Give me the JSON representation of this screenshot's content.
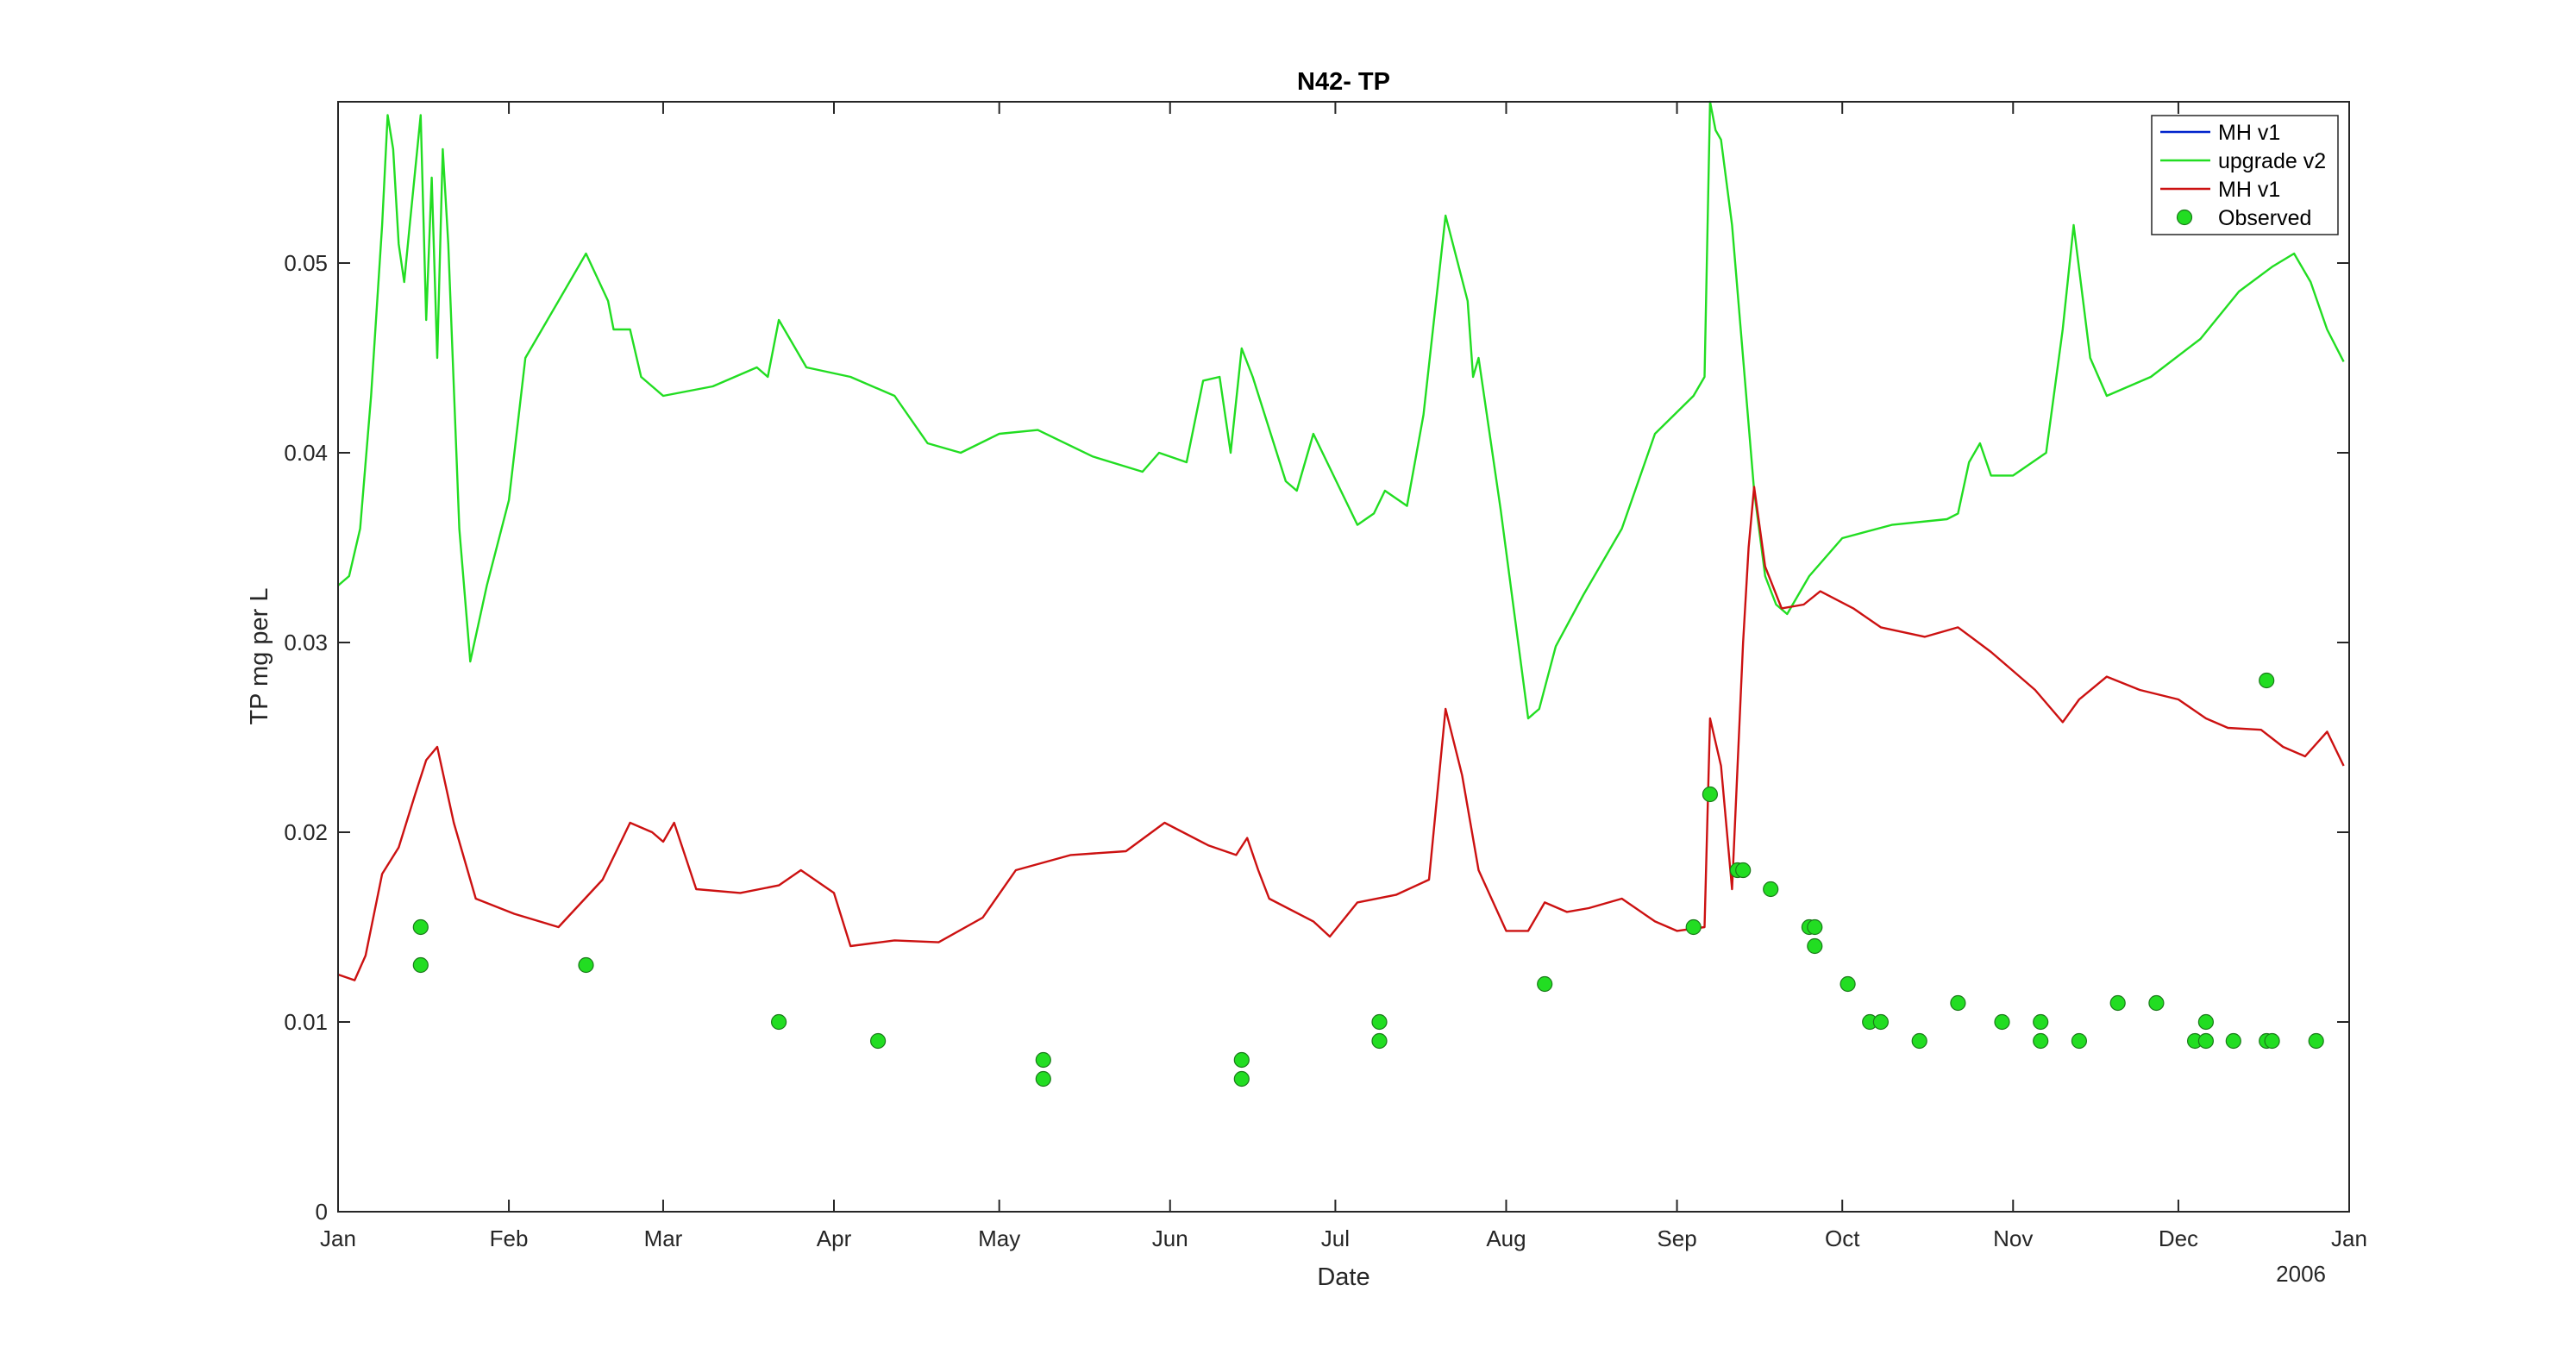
{
  "chart_data": {
    "type": "line",
    "title": "N42- TP",
    "xlabel": "Date",
    "ylabel": "TP mg per L",
    "year_label": "2006",
    "x_range": [
      "2006-01-01",
      "2007-01-01"
    ],
    "xticks": [
      "Jan",
      "Feb",
      "Mar",
      "Apr",
      "May",
      "Jun",
      "Jul",
      "Aug",
      "Sep",
      "Oct",
      "Nov",
      "Dec",
      "Jan"
    ],
    "xtick_dates": [
      "2006-01-01",
      "2006-02-01",
      "2006-03-01",
      "2006-04-01",
      "2006-05-01",
      "2006-06-01",
      "2006-07-01",
      "2006-08-01",
      "2006-09-01",
      "2006-10-01",
      "2006-11-01",
      "2006-12-01",
      "2007-01-01"
    ],
    "ylim": [
      0,
      0.0585
    ],
    "yticks": [
      0,
      0.01,
      0.02,
      0.03,
      0.04,
      0.05
    ],
    "ytick_labels": [
      "0",
      "0.01",
      "0.02",
      "0.03",
      "0.04",
      "0.05"
    ],
    "legend_position": "top-right",
    "grid": false,
    "series": [
      {
        "name": "MH v1",
        "color": "#0022cc",
        "kind": "line",
        "points": []
      },
      {
        "name": "upgrade v2",
        "color": "#22dd22",
        "kind": "line",
        "points": [
          [
            "2006-01-01",
            0.033
          ],
          [
            "2006-01-03",
            0.0335
          ],
          [
            "2006-01-05",
            0.036
          ],
          [
            "2006-01-07",
            0.043
          ],
          [
            "2006-01-09",
            0.052
          ],
          [
            "2006-01-10",
            0.0578
          ],
          [
            "2006-01-11",
            0.056
          ],
          [
            "2006-01-12",
            0.051
          ],
          [
            "2006-01-13",
            0.049
          ],
          [
            "2006-01-14",
            0.052
          ],
          [
            "2006-01-16",
            0.0578
          ],
          [
            "2006-01-17",
            0.047
          ],
          [
            "2006-01-18",
            0.0545
          ],
          [
            "2006-01-19",
            0.045
          ],
          [
            "2006-01-20",
            0.056
          ],
          [
            "2006-01-21",
            0.051
          ],
          [
            "2006-01-23",
            0.036
          ],
          [
            "2006-01-25",
            0.029
          ],
          [
            "2006-01-28",
            0.033
          ],
          [
            "2006-02-01",
            0.0375
          ],
          [
            "2006-02-04",
            0.045
          ],
          [
            "2006-02-10",
            0.048
          ],
          [
            "2006-02-15",
            0.0505
          ],
          [
            "2006-02-19",
            0.048
          ],
          [
            "2006-02-20",
            0.0465
          ],
          [
            "2006-02-23",
            0.0465
          ],
          [
            "2006-02-25",
            0.044
          ],
          [
            "2006-03-01",
            0.043
          ],
          [
            "2006-03-10",
            0.0435
          ],
          [
            "2006-03-18",
            0.0445
          ],
          [
            "2006-03-20",
            0.044
          ],
          [
            "2006-03-22",
            0.047
          ],
          [
            "2006-03-27",
            0.0445
          ],
          [
            "2006-04-04",
            0.044
          ],
          [
            "2006-04-12",
            0.043
          ],
          [
            "2006-04-18",
            0.0405
          ],
          [
            "2006-04-24",
            0.04
          ],
          [
            "2006-05-01",
            0.041
          ],
          [
            "2006-05-08",
            0.0412
          ],
          [
            "2006-05-18",
            0.0398
          ],
          [
            "2006-05-27",
            0.039
          ],
          [
            "2006-05-30",
            0.04
          ],
          [
            "2006-06-04",
            0.0395
          ],
          [
            "2006-06-07",
            0.0438
          ],
          [
            "2006-06-10",
            0.044
          ],
          [
            "2006-06-12",
            0.04
          ],
          [
            "2006-06-14",
            0.0455
          ],
          [
            "2006-06-16",
            0.044
          ],
          [
            "2006-06-22",
            0.0385
          ],
          [
            "2006-06-24",
            0.038
          ],
          [
            "2006-06-27",
            0.041
          ],
          [
            "2006-07-02",
            0.038
          ],
          [
            "2006-07-05",
            0.0362
          ],
          [
            "2006-07-08",
            0.0368
          ],
          [
            "2006-07-10",
            0.038
          ],
          [
            "2006-07-14",
            0.0372
          ],
          [
            "2006-07-17",
            0.042
          ],
          [
            "2006-07-21",
            0.0525
          ],
          [
            "2006-07-25",
            0.048
          ],
          [
            "2006-07-26",
            0.044
          ],
          [
            "2006-07-27",
            0.045
          ],
          [
            "2006-07-31",
            0.037
          ],
          [
            "2006-08-05",
            0.026
          ],
          [
            "2006-08-07",
            0.0265
          ],
          [
            "2006-08-10",
            0.0298
          ],
          [
            "2006-08-15",
            0.0325
          ],
          [
            "2006-08-22",
            0.036
          ],
          [
            "2006-08-28",
            0.041
          ],
          [
            "2006-09-04",
            0.043
          ],
          [
            "2006-09-06",
            0.044
          ],
          [
            "2006-09-07",
            0.0585
          ],
          [
            "2006-09-08",
            0.057
          ],
          [
            "2006-09-09",
            0.0565
          ],
          [
            "2006-09-11",
            0.052
          ],
          [
            "2006-09-15",
            0.038
          ],
          [
            "2006-09-17",
            0.0335
          ],
          [
            "2006-09-19",
            0.032
          ],
          [
            "2006-09-21",
            0.0315
          ],
          [
            "2006-09-25",
            0.0335
          ],
          [
            "2006-10-01",
            0.0355
          ],
          [
            "2006-10-10",
            0.0362
          ],
          [
            "2006-10-20",
            0.0365
          ],
          [
            "2006-10-22",
            0.0368
          ],
          [
            "2006-10-24",
            0.0395
          ],
          [
            "2006-10-26",
            0.0405
          ],
          [
            "2006-10-28",
            0.0388
          ],
          [
            "2006-11-01",
            0.0388
          ],
          [
            "2006-11-07",
            0.04
          ],
          [
            "2006-11-10",
            0.0465
          ],
          [
            "2006-11-12",
            0.052
          ],
          [
            "2006-11-15",
            0.045
          ],
          [
            "2006-11-18",
            0.043
          ],
          [
            "2006-11-26",
            0.044
          ],
          [
            "2006-12-05",
            0.046
          ],
          [
            "2006-12-12",
            0.0485
          ],
          [
            "2006-12-18",
            0.0498
          ],
          [
            "2006-12-22",
            0.0505
          ],
          [
            "2006-12-25",
            0.049
          ],
          [
            "2006-12-28",
            0.0465
          ],
          [
            "2006-12-31",
            0.0448
          ]
        ]
      },
      {
        "name": "MH v1",
        "color": "#cc1111",
        "kind": "line",
        "points": [
          [
            "2006-01-01",
            0.0125
          ],
          [
            "2006-01-04",
            0.0122
          ],
          [
            "2006-01-06",
            0.0135
          ],
          [
            "2006-01-09",
            0.0178
          ],
          [
            "2006-01-12",
            0.0192
          ],
          [
            "2006-01-15",
            0.022
          ],
          [
            "2006-01-17",
            0.0238
          ],
          [
            "2006-01-19",
            0.0245
          ],
          [
            "2006-01-22",
            0.0205
          ],
          [
            "2006-01-26",
            0.0165
          ],
          [
            "2006-02-02",
            0.0157
          ],
          [
            "2006-02-10",
            0.015
          ],
          [
            "2006-02-18",
            0.0175
          ],
          [
            "2006-02-23",
            0.0205
          ],
          [
            "2006-02-27",
            0.02
          ],
          [
            "2006-03-01",
            0.0195
          ],
          [
            "2006-03-03",
            0.0205
          ],
          [
            "2006-03-07",
            0.017
          ],
          [
            "2006-03-15",
            0.0168
          ],
          [
            "2006-03-22",
            0.0172
          ],
          [
            "2006-03-26",
            0.018
          ],
          [
            "2006-04-01",
            0.0168
          ],
          [
            "2006-04-04",
            0.014
          ],
          [
            "2006-04-12",
            0.0143
          ],
          [
            "2006-04-20",
            0.0142
          ],
          [
            "2006-04-28",
            0.0155
          ],
          [
            "2006-05-04",
            0.018
          ],
          [
            "2006-05-14",
            0.0188
          ],
          [
            "2006-05-24",
            0.019
          ],
          [
            "2006-05-31",
            0.0205
          ],
          [
            "2006-06-08",
            0.0193
          ],
          [
            "2006-06-13",
            0.0188
          ],
          [
            "2006-06-15",
            0.0197
          ],
          [
            "2006-06-17",
            0.018
          ],
          [
            "2006-06-19",
            0.0165
          ],
          [
            "2006-06-27",
            0.0153
          ],
          [
            "2006-06-30",
            0.0145
          ],
          [
            "2006-07-05",
            0.0163
          ],
          [
            "2006-07-12",
            0.0167
          ],
          [
            "2006-07-18",
            0.0175
          ],
          [
            "2006-07-21",
            0.0265
          ],
          [
            "2006-07-24",
            0.023
          ],
          [
            "2006-07-27",
            0.018
          ],
          [
            "2006-08-01",
            0.0148
          ],
          [
            "2006-08-05",
            0.0148
          ],
          [
            "2006-08-08",
            0.0163
          ],
          [
            "2006-08-12",
            0.0158
          ],
          [
            "2006-08-16",
            0.016
          ],
          [
            "2006-08-22",
            0.0165
          ],
          [
            "2006-08-28",
            0.0153
          ],
          [
            "2006-09-01",
            0.0148
          ],
          [
            "2006-09-06",
            0.015
          ],
          [
            "2006-09-07",
            0.026
          ],
          [
            "2006-09-09",
            0.0235
          ],
          [
            "2006-09-11",
            0.017
          ],
          [
            "2006-09-13",
            0.03
          ],
          [
            "2006-09-14",
            0.035
          ],
          [
            "2006-09-15",
            0.0382
          ],
          [
            "2006-09-17",
            0.034
          ],
          [
            "2006-09-20",
            0.0318
          ],
          [
            "2006-09-24",
            0.032
          ],
          [
            "2006-09-27",
            0.0327
          ],
          [
            "2006-10-03",
            0.0318
          ],
          [
            "2006-10-08",
            0.0308
          ],
          [
            "2006-10-16",
            0.0303
          ],
          [
            "2006-10-22",
            0.0308
          ],
          [
            "2006-10-28",
            0.0295
          ],
          [
            "2006-11-01",
            0.0285
          ],
          [
            "2006-11-05",
            0.0275
          ],
          [
            "2006-11-10",
            0.0258
          ],
          [
            "2006-11-13",
            0.027
          ],
          [
            "2006-11-18",
            0.0282
          ],
          [
            "2006-11-24",
            0.0275
          ],
          [
            "2006-12-01",
            0.027
          ],
          [
            "2006-12-06",
            0.026
          ],
          [
            "2006-12-10",
            0.0255
          ],
          [
            "2006-12-16",
            0.0254
          ],
          [
            "2006-12-20",
            0.0245
          ],
          [
            "2006-12-24",
            0.024
          ],
          [
            "2006-12-28",
            0.0253
          ],
          [
            "2006-12-31",
            0.0235
          ]
        ]
      },
      {
        "name": "Observed",
        "color": "#22dd22",
        "kind": "scatter",
        "points": [
          [
            "2006-01-16",
            0.015
          ],
          [
            "2006-01-16",
            0.013
          ],
          [
            "2006-02-15",
            0.013
          ],
          [
            "2006-03-22",
            0.01
          ],
          [
            "2006-04-09",
            0.009
          ],
          [
            "2006-05-09",
            0.008
          ],
          [
            "2006-05-09",
            0.007
          ],
          [
            "2006-06-14",
            0.008
          ],
          [
            "2006-06-14",
            0.007
          ],
          [
            "2006-07-09",
            0.01
          ],
          [
            "2006-07-09",
            0.009
          ],
          [
            "2006-08-08",
            0.012
          ],
          [
            "2006-09-04",
            0.015
          ],
          [
            "2006-09-07",
            0.022
          ],
          [
            "2006-09-12",
            0.018
          ],
          [
            "2006-09-13",
            0.018
          ],
          [
            "2006-09-18",
            0.017
          ],
          [
            "2006-09-25",
            0.015
          ],
          [
            "2006-09-26",
            0.015
          ],
          [
            "2006-09-26",
            0.014
          ],
          [
            "2006-10-02",
            0.012
          ],
          [
            "2006-10-06",
            0.01
          ],
          [
            "2006-10-08",
            0.01
          ],
          [
            "2006-10-15",
            0.009
          ],
          [
            "2006-10-22",
            0.011
          ],
          [
            "2006-10-30",
            0.01
          ],
          [
            "2006-11-06",
            0.01
          ],
          [
            "2006-11-06",
            0.009
          ],
          [
            "2006-11-13",
            0.009
          ],
          [
            "2006-11-20",
            0.011
          ],
          [
            "2006-11-27",
            0.011
          ],
          [
            "2006-12-04",
            0.009
          ],
          [
            "2006-12-06",
            0.009
          ],
          [
            "2006-12-06",
            0.01
          ],
          [
            "2006-12-11",
            0.009
          ],
          [
            "2006-12-17",
            0.009
          ],
          [
            "2006-12-17",
            0.028
          ],
          [
            "2006-12-18",
            0.009
          ],
          [
            "2006-12-26",
            0.009
          ]
        ]
      }
    ]
  }
}
